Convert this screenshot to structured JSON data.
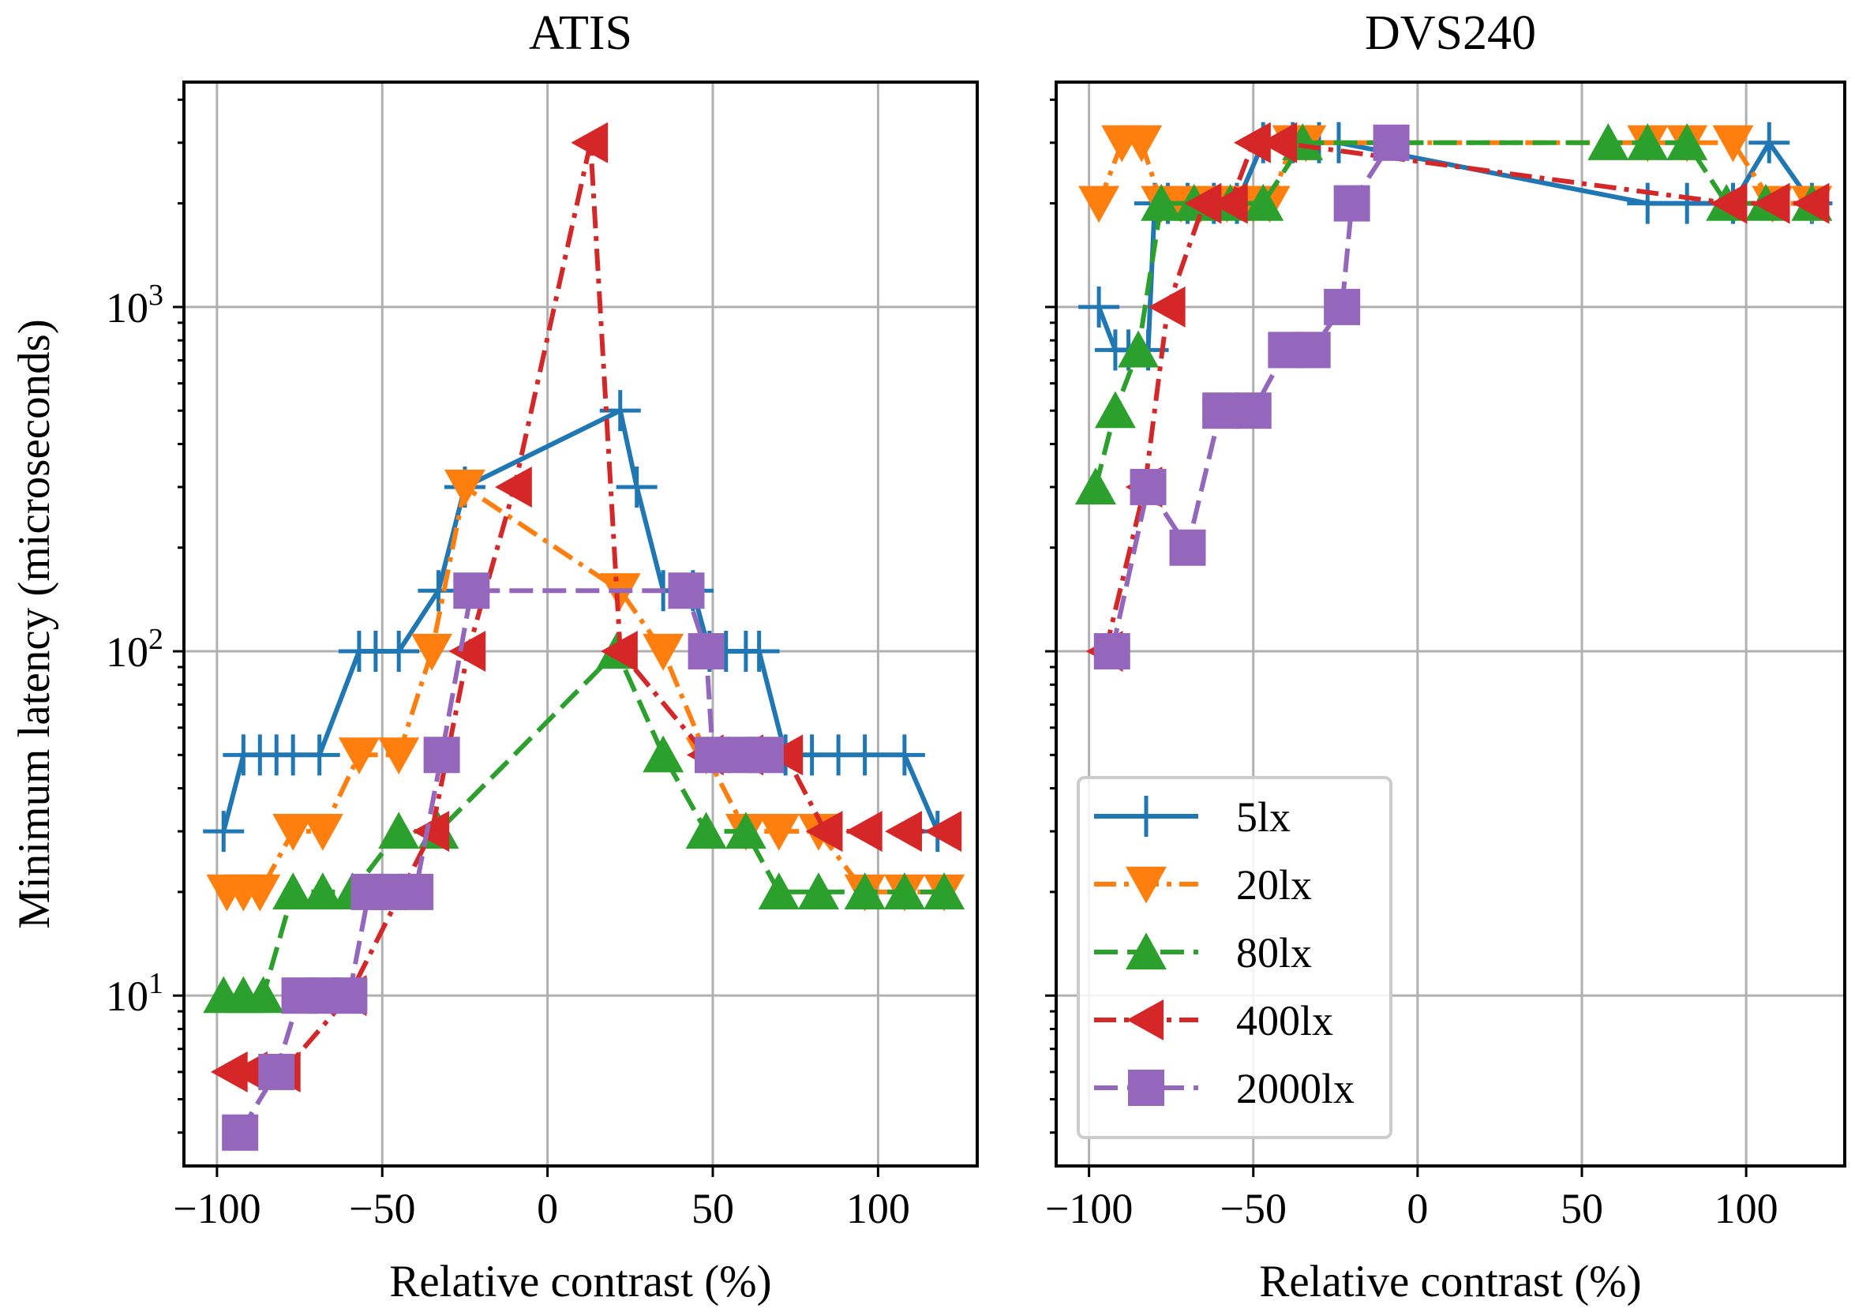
{
  "colors": {
    "5lx": "#1f77b4",
    "20lx": "#ff7f0e",
    "80lx": "#2ca02c",
    "400lx": "#d62728",
    "2000lx": "#9467bd"
  },
  "chart_data": [
    {
      "type": "line",
      "title": "ATIS",
      "xlabel": "Relative contrast (%)",
      "ylabel": "Minimum latency (microseconds)",
      "yscale": "log",
      "xlim": [
        -110,
        130
      ],
      "ylim": [
        3.2,
        4500
      ],
      "xticks": [
        -100,
        -50,
        0,
        50,
        100
      ],
      "xtick_labels": [
        "−100",
        "−50",
        "0",
        "50",
        "100"
      ],
      "ytick_labels": [
        "10",
        "10",
        "10"
      ],
      "ytick_exponents": [
        "1",
        "2",
        "3"
      ],
      "series": [
        {
          "name": "5lx",
          "marker": "plus",
          "dash": "solid",
          "x": [
            -98,
            -92,
            -87,
            -82,
            -77,
            -69,
            -57,
            -52,
            -45,
            -33,
            -25,
            22,
            27,
            35,
            44,
            49,
            54,
            60,
            64,
            72,
            80,
            88,
            96,
            108,
            118
          ],
          "y": [
            30,
            50,
            50,
            50,
            50,
            50,
            100,
            100,
            100,
            150,
            300,
            500,
            300,
            150,
            150,
            100,
            100,
            100,
            100,
            50,
            50,
            50,
            50,
            50,
            30
          ]
        },
        {
          "name": "20lx",
          "marker": "triangle-down",
          "dash": "dashdot",
          "x": [
            -97,
            -92,
            -87,
            -77,
            -68,
            -57,
            -45,
            -35,
            -25,
            22,
            35,
            48,
            60,
            70,
            82,
            96,
            108,
            120
          ],
          "y": [
            20,
            20,
            20,
            30,
            30,
            50,
            50,
            100,
            300,
            150,
            100,
            50,
            30,
            30,
            30,
            20,
            20,
            20
          ]
        },
        {
          "name": "80lx",
          "marker": "triangle-up",
          "dash": "dashed",
          "x": [
            -98,
            -92,
            -86,
            -77,
            -68,
            -59,
            -45,
            -33,
            21,
            35,
            48,
            60,
            70,
            82,
            96,
            108,
            120
          ],
          "y": [
            10,
            10,
            10,
            20,
            20,
            20,
            30,
            30,
            100,
            50,
            30,
            30,
            20,
            20,
            20,
            20,
            20
          ]
        },
        {
          "name": "400lx",
          "marker": "triangle-left",
          "dash": "dashdot",
          "x": [
            -96,
            -90,
            -80,
            -60,
            -35,
            -24,
            -10,
            13,
            22,
            48,
            60,
            72,
            84,
            96,
            108,
            120
          ],
          "y": [
            6,
            6,
            6,
            10,
            30,
            100,
            300,
            3000,
            100,
            50,
            50,
            50,
            30,
            30,
            30,
            30
          ]
        },
        {
          "name": "2000lx",
          "marker": "square",
          "dash": "dashed",
          "x": [
            -93,
            -82,
            -75,
            -68,
            -60,
            -54,
            -48,
            -40,
            -32,
            -23,
            42,
            48,
            50,
            60,
            66
          ],
          "y": [
            4,
            6,
            10,
            10,
            10,
            20,
            20,
            20,
            50,
            150,
            150,
            100,
            50,
            50,
            50
          ]
        }
      ]
    },
    {
      "type": "line",
      "title": "DVS240",
      "xlabel": "Relative contrast (%)",
      "yscale": "log",
      "xlim": [
        -110,
        130
      ],
      "ylim": [
        3.2,
        4500
      ],
      "xticks": [
        -100,
        -50,
        0,
        50,
        100
      ],
      "xtick_labels": [
        "−100",
        "−50",
        "0",
        "50",
        "100"
      ],
      "legend": {
        "position": "lower-left",
        "entries": [
          "5lx",
          "20lx",
          "80lx",
          "400lx",
          "2000lx"
        ]
      },
      "series": [
        {
          "name": "5lx",
          "marker": "plus",
          "dash": "solid",
          "x": [
            -97,
            -92,
            -88,
            -82,
            -80,
            -76,
            -70,
            -62,
            -55,
            -47,
            -38,
            -30,
            -24,
            70,
            82,
            96,
            107,
            120
          ],
          "y": [
            1000,
            750,
            750,
            750,
            2000,
            2000,
            2000,
            2000,
            2000,
            3000,
            3000,
            3000,
            3000,
            2000,
            2000,
            2000,
            3000,
            2000
          ]
        },
        {
          "name": "20lx",
          "marker": "triangle-down",
          "dash": "dashdot",
          "x": [
            -97,
            -90,
            -84,
            -78,
            -72,
            -66,
            -58,
            -50,
            -45,
            -38,
            -34,
            70,
            82,
            96,
            108,
            120
          ],
          "y": [
            2000,
            3000,
            3000,
            2000,
            2000,
            2000,
            2000,
            2000,
            2000,
            3000,
            3000,
            3000,
            3000,
            3000,
            2000,
            2000
          ]
        },
        {
          "name": "80lx",
          "marker": "triangle-up",
          "dash": "dashed",
          "x": [
            -98,
            -92,
            -85,
            -78,
            -68,
            -57,
            -47,
            -35,
            58,
            70,
            82,
            94,
            106,
            120
          ],
          "y": [
            300,
            500,
            750,
            2000,
            2000,
            2000,
            2000,
            3000,
            3000,
            3000,
            3000,
            2000,
            2000,
            2000
          ]
        },
        {
          "name": "400lx",
          "marker": "triangle-left",
          "dash": "dashdot",
          "x": [
            -95,
            -83,
            -76,
            -65,
            -57,
            -50,
            -42,
            95,
            108,
            120
          ],
          "y": [
            100,
            300,
            1000,
            2000,
            2000,
            3000,
            3000,
            2000,
            2000,
            2000
          ]
        },
        {
          "name": "2000lx",
          "marker": "square",
          "dash": "dashed",
          "x": [
            -93,
            -82,
            -70,
            -60,
            -50,
            -40,
            -32,
            -23,
            -20,
            -8
          ],
          "y": [
            100,
            300,
            200,
            500,
            500,
            750,
            750,
            1000,
            2000,
            3000
          ]
        }
      ]
    }
  ]
}
